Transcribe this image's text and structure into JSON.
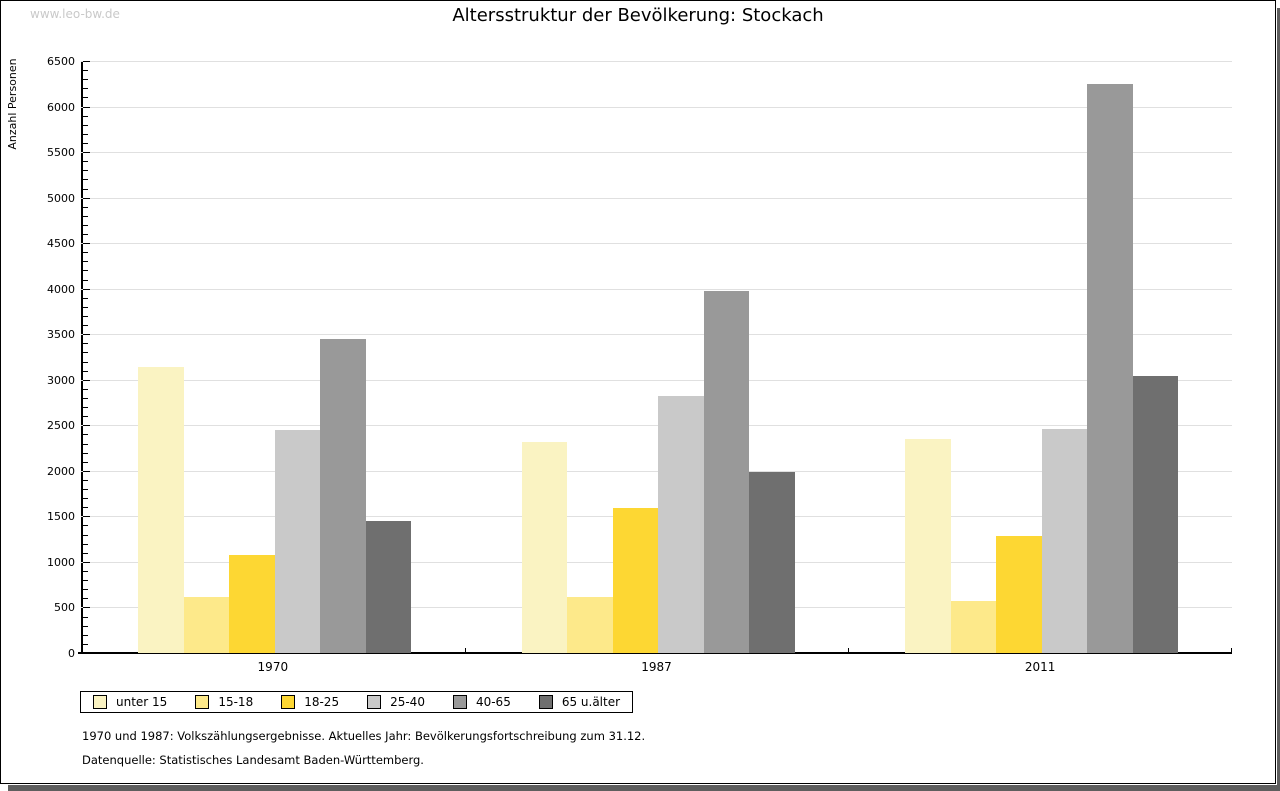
{
  "watermark": "www.leo-bw.de",
  "title": "Altersstruktur der Bevölkerung: Stockach",
  "chart_data": {
    "type": "bar",
    "title": "Altersstruktur der Bevölkerung: Stockach",
    "xlabel": "",
    "ylabel": "Anzahl Personen",
    "ylim": [
      0,
      6500
    ],
    "ytick_step": 500,
    "yminor_step": 100,
    "grid": true,
    "legend_position": "bottom-left",
    "categories": [
      "1970",
      "1987",
      "2011"
    ],
    "series": [
      {
        "name": "unter 15",
        "color": "#faf3c2",
        "values": [
          3140,
          2320,
          2350
        ]
      },
      {
        "name": "15-18",
        "color": "#fde98a",
        "values": [
          620,
          610,
          570
        ]
      },
      {
        "name": "18-25",
        "color": "#fdd733",
        "values": [
          1080,
          1590,
          1290
        ]
      },
      {
        "name": "25-40",
        "color": "#c9c9c9",
        "values": [
          2450,
          2820,
          2460
        ]
      },
      {
        "name": "40-65",
        "color": "#999999",
        "values": [
          3450,
          3980,
          6250
        ]
      },
      {
        "name": "65 u.älter",
        "color": "#6f6f6f",
        "values": [
          1450,
          1990,
          3040
        ]
      }
    ]
  },
  "footer": {
    "line1": "1970 und 1987: Volkszählungsergebnisse. Aktuelles Jahr: Bevölkerungsfortschreibung zum 31.12.",
    "line2": "Datenquelle: Statistisches Landesamt Baden-Württemberg."
  }
}
